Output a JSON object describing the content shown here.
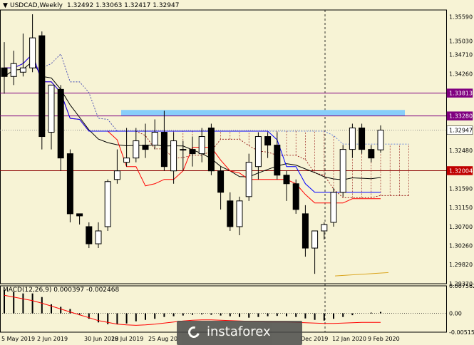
{
  "header": {
    "menu_arrow": "▼",
    "symbol": "USDCAD,Weekly",
    "values": "1.32492 1.33063 1.32417 1.32947"
  },
  "macd_label": "MACD(12,26,9) 0.000397 -0.002468",
  "watermark": "instaforex",
  "price_axis": [
    "1.35590",
    "1.35030",
    "1.34710",
    "1.34260",
    "1.33813",
    "1.33280",
    "1.32947",
    "1.32480",
    "1.32004",
    "1.31590",
    "1.31150",
    "1.30700",
    "1.30260",
    "1.29820",
    "1.29370"
  ],
  "macd_axis": [
    "0.007562",
    "0.00",
    "-0.005151"
  ],
  "time_axis": [
    "5 May 2019",
    "2 Jun 2019",
    "30 Jun 2019",
    "28 Jul 2019",
    "25 Aug 20",
    "Dec 2019",
    "12 Jan 2020",
    "9 Feb 2020"
  ],
  "levels": {
    "purple_upper": "1.33813",
    "purple_lower": "1.33280",
    "current": "1.32947",
    "red": "1.32004"
  },
  "colors": {
    "background": "#f7f3d5",
    "resistance_zone": "#87cefa",
    "purple_level": "#800080",
    "red_level": "#8b0000",
    "bull_candle": "#ffffff",
    "bear_candle": "#000000",
    "tenkan": "#ff0000",
    "kijun": "#0000ff",
    "senkou_a": "#8b0000",
    "senkou_b": "#4169e1",
    "sma": "#000000",
    "orange_ma": "#daa520",
    "price_label_red": "#c00000",
    "price_label_purple": "#800080"
  },
  "icons": [
    "dropdown-arrow-icon"
  ],
  "chart_data": {
    "type": "candlestick",
    "timeframe": "Weekly",
    "symbol": "USDCAD",
    "ylim": [
      1.2937,
      1.3575
    ],
    "candles": [
      {
        "o": 1.344,
        "h": 1.35,
        "l": 1.338,
        "c": 1.342
      },
      {
        "o": 1.342,
        "h": 1.348,
        "l": 1.34,
        "c": 1.345
      },
      {
        "o": 1.343,
        "h": 1.352,
        "l": 1.342,
        "c": 1.344
      },
      {
        "o": 1.344,
        "h": 1.3565,
        "l": 1.343,
        "c": 1.351
      },
      {
        "o": 1.3515,
        "h": 1.3525,
        "l": 1.325,
        "c": 1.328
      },
      {
        "o": 1.329,
        "h": 1.34,
        "l": 1.325,
        "c": 1.34
      },
      {
        "o": 1.339,
        "h": 1.34,
        "l": 1.32,
        "c": 1.323
      },
      {
        "o": 1.324,
        "h": 1.325,
        "l": 1.308,
        "c": 1.31
      },
      {
        "o": 1.31,
        "h": 1.31,
        "l": 1.3075,
        "c": 1.3095
      },
      {
        "o": 1.307,
        "h": 1.308,
        "l": 1.302,
        "c": 1.303
      },
      {
        "o": 1.303,
        "h": 1.308,
        "l": 1.302,
        "c": 1.306
      },
      {
        "o": 1.307,
        "h": 1.318,
        "l": 1.306,
        "c": 1.3175
      },
      {
        "o": 1.318,
        "h": 1.325,
        "l": 1.317,
        "c": 1.32
      },
      {
        "o": 1.322,
        "h": 1.33,
        "l": 1.321,
        "c": 1.323
      },
      {
        "o": 1.323,
        "h": 1.33,
        "l": 1.322,
        "c": 1.327
      },
      {
        "o": 1.326,
        "h": 1.331,
        "l": 1.323,
        "c": 1.325
      },
      {
        "o": 1.326,
        "h": 1.332,
        "l": 1.325,
        "c": 1.329
      },
      {
        "o": 1.329,
        "h": 1.334,
        "l": 1.32,
        "c": 1.321
      },
      {
        "o": 1.32,
        "h": 1.329,
        "l": 1.317,
        "c": 1.327
      },
      {
        "o": 1.325,
        "h": 1.327,
        "l": 1.32,
        "c": 1.325
      },
      {
        "o": 1.325,
        "h": 1.328,
        "l": 1.321,
        "c": 1.324
      },
      {
        "o": 1.324,
        "h": 1.33,
        "l": 1.322,
        "c": 1.328
      },
      {
        "o": 1.33,
        "h": 1.331,
        "l": 1.319,
        "c": 1.32
      },
      {
        "o": 1.32,
        "h": 1.321,
        "l": 1.311,
        "c": 1.315
      },
      {
        "o": 1.313,
        "h": 1.315,
        "l": 1.306,
        "c": 1.307
      },
      {
        "o": 1.307,
        "h": 1.314,
        "l": 1.305,
        "c": 1.313
      },
      {
        "o": 1.314,
        "h": 1.324,
        "l": 1.313,
        "c": 1.322
      },
      {
        "o": 1.321,
        "h": 1.329,
        "l": 1.318,
        "c": 1.328
      },
      {
        "o": 1.328,
        "h": 1.329,
        "l": 1.323,
        "c": 1.326
      },
      {
        "o": 1.326,
        "h": 1.329,
        "l": 1.318,
        "c": 1.319
      },
      {
        "o": 1.319,
        "h": 1.32,
        "l": 1.313,
        "c": 1.317
      },
      {
        "o": 1.317,
        "h": 1.318,
        "l": 1.31,
        "c": 1.311
      },
      {
        "o": 1.31,
        "h": 1.312,
        "l": 1.3,
        "c": 1.302
      },
      {
        "o": 1.302,
        "h": 1.306,
        "l": 1.296,
        "c": 1.306
      },
      {
        "o": 1.306,
        "h": 1.308,
        "l": 1.304,
        "c": 1.3075
      },
      {
        "o": 1.308,
        "h": 1.316,
        "l": 1.307,
        "c": 1.315
      },
      {
        "o": 1.315,
        "h": 1.326,
        "l": 1.314,
        "c": 1.325
      },
      {
        "o": 1.325,
        "h": 1.331,
        "l": 1.323,
        "c": 1.33
      },
      {
        "o": 1.33,
        "h": 1.331,
        "l": 1.324,
        "c": 1.325
      },
      {
        "o": 1.325,
        "h": 1.326,
        "l": 1.322,
        "c": 1.323
      },
      {
        "o": 1.3249,
        "h": 1.3306,
        "l": 1.3242,
        "c": 1.3295
      }
    ],
    "horizontal_levels": [
      1.33813,
      1.3328,
      1.32947,
      1.32004
    ],
    "resistance_zone": [
      1.3328,
      1.3342
    ],
    "macd_hist": [
      0.0065,
      0.006,
      0.0055,
      0.0055,
      0.0045,
      0.0025,
      0.0018,
      0.0012,
      -0.0005,
      -0.0015,
      -0.0025,
      -0.003,
      -0.003,
      -0.0028,
      -0.0022,
      -0.0018,
      -0.0015,
      -0.001,
      -0.0008,
      -0.0006,
      -0.0004,
      -0.0003,
      -0.0004,
      -0.0006,
      -0.0008,
      -0.001,
      -0.0012,
      -0.001,
      -0.0008,
      -0.0007,
      -0.0008,
      -0.001,
      -0.0014,
      -0.0018,
      -0.002,
      -0.0015,
      -0.001,
      -0.0005,
      0.0,
      0.0002,
      0.0004
    ],
    "macd_signal": [
      0.005,
      0.0045,
      0.004,
      0.0035,
      0.0028,
      0.002,
      0.0012,
      0.0004,
      -0.0004,
      -0.0012,
      -0.002,
      -0.0025,
      -0.003,
      -0.0032,
      -0.0033,
      -0.0032,
      -0.003,
      -0.0027,
      -0.0024,
      -0.0021,
      -0.0019,
      -0.0018,
      -0.0018,
      -0.0019,
      -0.002,
      -0.0021,
      -0.0022,
      -0.0023,
      -0.0024,
      -0.0024,
      -0.0024,
      -0.0025,
      -0.0026,
      -0.0027,
      -0.0028,
      -0.0028,
      -0.0027,
      -0.0026,
      -0.0025,
      -0.0025,
      -0.0025
    ]
  }
}
